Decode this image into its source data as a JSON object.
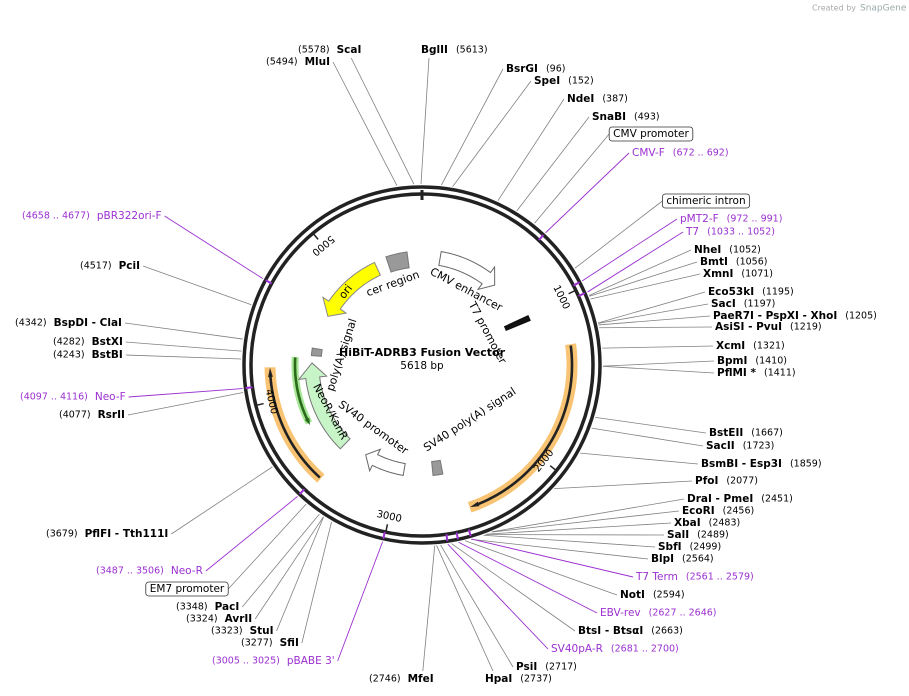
{
  "header": {
    "created_by": "Created by",
    "brand": "SnapGene"
  },
  "map": {
    "title": "HiBiT-ADRB3 Fusion Vector",
    "size": "5618 bp",
    "total_bp": 5618,
    "ticks": [
      1000,
      2000,
      3000,
      4000,
      5000
    ],
    "features": [
      "ori",
      "cer region",
      "CMV enhancer",
      "T7 promoter",
      "SV40 poly(A) signal",
      "SV40 promoter",
      "NeoR/KanR",
      "poly(A) signal"
    ],
    "callouts": [
      "CMV promoter",
      "chimeric intron",
      "EM7 promoter"
    ],
    "sites_right": [
      {
        "name": "BglII",
        "pos": "(5613)",
        "kind": "enzyme"
      },
      {
        "name": "BsrGI",
        "pos": "(96)",
        "kind": "enzyme"
      },
      {
        "name": "SpeI",
        "pos": "(152)",
        "kind": "enzyme"
      },
      {
        "name": "NdeI",
        "pos": "(387)",
        "kind": "enzyme"
      },
      {
        "name": "SnaBI",
        "pos": "(493)",
        "kind": "enzyme"
      },
      {
        "name": "CMV-F",
        "pos": "(672 .. 692)",
        "kind": "primer"
      },
      {
        "name": "pMT2-F",
        "pos": "(972 .. 991)",
        "kind": "primer"
      },
      {
        "name": "T7",
        "pos": "(1033 .. 1052)",
        "kind": "primer"
      },
      {
        "name": "NheI",
        "pos": "(1052)",
        "kind": "enzyme"
      },
      {
        "name": "BmtI",
        "pos": "(1056)",
        "kind": "enzyme"
      },
      {
        "name": "XmnI",
        "pos": "(1071)",
        "kind": "enzyme"
      },
      {
        "name": "Eco53kI",
        "pos": "(1195)",
        "kind": "enzyme"
      },
      {
        "name": "SacI",
        "pos": "(1197)",
        "kind": "enzyme"
      },
      {
        "name": "PaeR7I - PspXI - XhoI",
        "pos": "(1205)",
        "kind": "enzyme"
      },
      {
        "name": "AsiSI - PvuI",
        "pos": "(1219)",
        "kind": "enzyme"
      },
      {
        "name": "XcmI",
        "pos": "(1321)",
        "kind": "enzyme"
      },
      {
        "name": "BpmI",
        "pos": "(1410)",
        "kind": "enzyme"
      },
      {
        "name": "PflMI *",
        "pos": "(1411)",
        "kind": "enzyme"
      },
      {
        "name": "BstEII",
        "pos": "(1667)",
        "kind": "enzyme"
      },
      {
        "name": "SacII",
        "pos": "(1723)",
        "kind": "enzyme"
      },
      {
        "name": "BsmBI - Esp3I",
        "pos": "(1859)",
        "kind": "enzyme"
      },
      {
        "name": "PfoI",
        "pos": "(2077)",
        "kind": "enzyme"
      },
      {
        "name": "DraI - PmeI",
        "pos": "(2451)",
        "kind": "enzyme"
      },
      {
        "name": "EcoRI",
        "pos": "(2456)",
        "kind": "enzyme"
      },
      {
        "name": "XbaI",
        "pos": "(2483)",
        "kind": "enzyme"
      },
      {
        "name": "SalI",
        "pos": "(2489)",
        "kind": "enzyme"
      },
      {
        "name": "SbfI",
        "pos": "(2499)",
        "kind": "enzyme"
      },
      {
        "name": "BlpI",
        "pos": "(2564)",
        "kind": "enzyme"
      },
      {
        "name": "T7 Term",
        "pos": "(2561 .. 2579)",
        "kind": "primer"
      },
      {
        "name": "NotI",
        "pos": "(2594)",
        "kind": "enzyme"
      },
      {
        "name": "EBV-rev",
        "pos": "(2627 .. 2646)",
        "kind": "primer"
      },
      {
        "name": "BtsI - BtsαI",
        "pos": "(2663)",
        "kind": "enzyme"
      },
      {
        "name": "SV40pA-R",
        "pos": "(2681 .. 2700)",
        "kind": "primer"
      },
      {
        "name": "PsiI",
        "pos": "(2717)",
        "kind": "enzyme"
      },
      {
        "name": "HpaI",
        "pos": "(2737)",
        "kind": "enzyme"
      }
    ],
    "sites_left": [
      {
        "name": "ScaI",
        "pos": "(5578)",
        "kind": "enzyme"
      },
      {
        "name": "MluI",
        "pos": "(5494)",
        "kind": "enzyme"
      },
      {
        "name": "MfeI",
        "pos": "(2746)",
        "kind": "enzyme"
      },
      {
        "name": "pBR322ori-F",
        "pos": "(4658 .. 4677)",
        "kind": "primer"
      },
      {
        "name": "PciI",
        "pos": "(4517)",
        "kind": "enzyme"
      },
      {
        "name": "BspDI - ClaI",
        "pos": "(4342)",
        "kind": "enzyme"
      },
      {
        "name": "BstXI",
        "pos": "(4282)",
        "kind": "enzyme"
      },
      {
        "name": "BstBI",
        "pos": "(4243)",
        "kind": "enzyme"
      },
      {
        "name": "Neo-F",
        "pos": "(4097 .. 4116)",
        "kind": "primer"
      },
      {
        "name": "RsrII",
        "pos": "(4077)",
        "kind": "enzyme"
      },
      {
        "name": "PflFI - Tth111I",
        "pos": "(3679)",
        "kind": "enzyme"
      },
      {
        "name": "Neo-R",
        "pos": "(3487 .. 3506)",
        "kind": "primer"
      },
      {
        "name": "PacI",
        "pos": "(3348)",
        "kind": "enzyme"
      },
      {
        "name": "AvrII",
        "pos": "(3324)",
        "kind": "enzyme"
      },
      {
        "name": "StuI",
        "pos": "(3323)",
        "kind": "enzyme"
      },
      {
        "name": "SfiI",
        "pos": "(3277)",
        "kind": "enzyme"
      },
      {
        "name": "pBABE 3'",
        "pos": "(3005 .. 3025)",
        "kind": "primer"
      }
    ]
  }
}
